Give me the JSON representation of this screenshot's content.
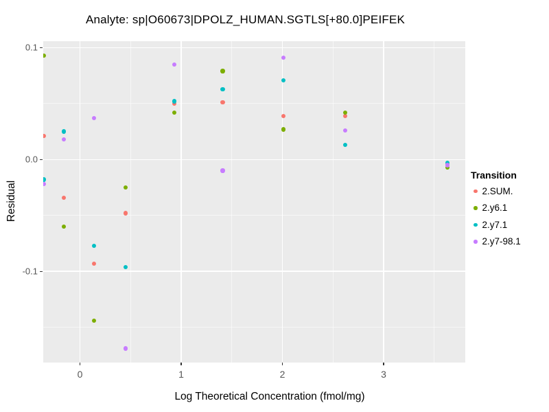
{
  "chart_data": {
    "type": "scatter",
    "title": "Analyte: sp|O60673|DPOLZ_HUMAN.SGTLS[+80.0]PEIFEK",
    "xlabel": "Log Theoretical Concentration (fmol/mg)",
    "ylabel": "Residual",
    "x_ticks": [
      0,
      1,
      2,
      3
    ],
    "x_tick_labels": [
      "0",
      "1",
      "2",
      "3"
    ],
    "x_minor_ticks": [
      0.5,
      1.5,
      2.5,
      3.5
    ],
    "y_ticks": [
      0.1,
      0.0,
      -0.1
    ],
    "y_tick_labels": [
      "0.1",
      "0.0",
      "-0.1"
    ],
    "y_minor_ticks": [
      0.05,
      -0.05,
      -0.15
    ],
    "xlim": [
      -0.363,
      3.807
    ],
    "ylim": [
      -0.1815,
      0.1058
    ],
    "grid": "on",
    "legend_position": "right",
    "legend": {
      "title": "Transition"
    },
    "series": [
      {
        "name": "2.SUM.",
        "color": "#F8766D",
        "points": [
          [
            -0.36,
            0.021
          ],
          [
            -0.16,
            -0.034
          ],
          [
            0.14,
            -0.093
          ],
          [
            0.45,
            -0.048
          ],
          [
            0.93,
            0.05
          ],
          [
            1.41,
            0.051
          ],
          [
            2.01,
            0.039
          ],
          [
            2.62,
            0.039
          ],
          [
            3.63,
            -0.004
          ]
        ]
      },
      {
        "name": "2.y6.1",
        "color": "#7CAE00",
        "points": [
          [
            -0.36,
            0.093
          ],
          [
            -0.16,
            -0.06
          ],
          [
            0.14,
            -0.144
          ],
          [
            0.45,
            -0.025
          ],
          [
            0.93,
            0.042
          ],
          [
            1.41,
            0.079
          ],
          [
            2.01,
            0.027
          ],
          [
            2.62,
            0.042
          ],
          [
            3.63,
            -0.007
          ]
        ]
      },
      {
        "name": "2.y7.1",
        "color": "#00BFC4",
        "points": [
          [
            -0.36,
            -0.018
          ],
          [
            -0.16,
            0.025
          ],
          [
            0.14,
            -0.077
          ],
          [
            0.45,
            -0.096
          ],
          [
            0.93,
            0.052
          ],
          [
            1.41,
            0.063
          ],
          [
            2.01,
            0.071
          ],
          [
            2.62,
            0.013
          ],
          [
            3.63,
            -0.003
          ]
        ]
      },
      {
        "name": "2.y7-98.1",
        "color": "#C77CFF",
        "points": [
          [
            -0.36,
            -0.022
          ],
          [
            -0.16,
            0.018
          ],
          [
            0.14,
            0.037
          ],
          [
            0.45,
            -0.169
          ],
          [
            0.93,
            0.085
          ],
          [
            1.41,
            -0.01
          ],
          [
            2.01,
            0.091
          ],
          [
            2.62,
            0.026
          ],
          [
            3.63,
            -0.005
          ]
        ]
      }
    ],
    "colors": {
      "panel_background": "#EBEBEB",
      "gridline": "#FFFFFF",
      "axis_text": "#555555",
      "text": "#000000"
    }
  }
}
